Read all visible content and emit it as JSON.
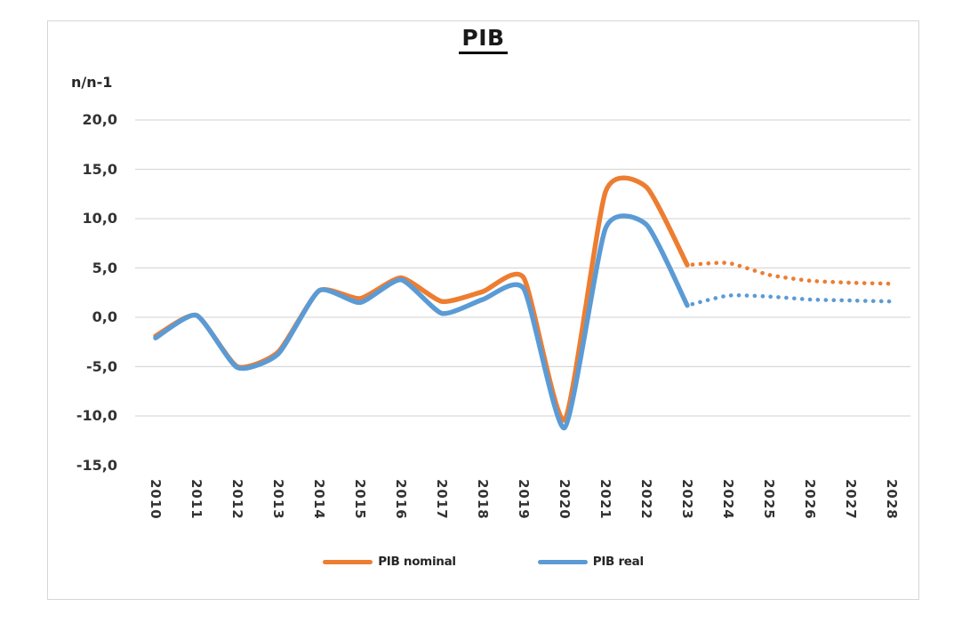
{
  "figure": {
    "title": "PIB",
    "y_axis_label": "n/n-1"
  },
  "legend": [
    {
      "label": "PIB nominal",
      "color": "#ED7D31"
    },
    {
      "label": "PIB real",
      "color": "#5B9BD5"
    }
  ],
  "chart_data": {
    "type": "line",
    "title": "PIB",
    "xlabel": "",
    "ylabel": "n/n-1",
    "ylim": [
      -15,
      20
    ],
    "grid": true,
    "legend_position": "bottom",
    "line_style_note": "solid through 2023, dotted forecast 2023-2028",
    "forecast_start_index": 13,
    "categories": [
      "2010",
      "2011",
      "2012",
      "2013",
      "2014",
      "2015",
      "2016",
      "2017",
      "2018",
      "2019",
      "2020",
      "2021",
      "2022",
      "2023",
      "2024",
      "2025",
      "2026",
      "2027",
      "2028"
    ],
    "y_ticks": [
      {
        "value": 20,
        "label": "20,0",
        "gridline": true
      },
      {
        "value": 15,
        "label": "15,0",
        "gridline": true
      },
      {
        "value": 10,
        "label": "10,0",
        "gridline": true
      },
      {
        "value": 5,
        "label": "5,0",
        "gridline": true
      },
      {
        "value": 0,
        "label": "0,0",
        "gridline": true
      },
      {
        "value": -5,
        "label": "-5,0",
        "gridline": true
      },
      {
        "value": -10,
        "label": "-10,0",
        "gridline": true
      },
      {
        "value": -15,
        "label": "-15,0",
        "gridline": false
      }
    ],
    "series": [
      {
        "name": "PIB nominal",
        "color": "#ED7D31",
        "values": [
          -1.9,
          0.2,
          -5.0,
          -3.5,
          2.7,
          1.9,
          4.0,
          1.6,
          2.6,
          4.0,
          -10.4,
          12.7,
          13.2,
          5.3,
          5.5,
          4.3,
          3.7,
          3.5,
          3.4
        ]
      },
      {
        "name": "PIB real",
        "color": "#5B9BD5",
        "values": [
          -2.1,
          0.2,
          -5.1,
          -3.7,
          2.7,
          1.5,
          3.8,
          0.4,
          1.8,
          2.9,
          -11.2,
          9.0,
          9.4,
          1.2,
          2.2,
          2.1,
          1.8,
          1.7,
          1.6
        ]
      }
    ]
  }
}
